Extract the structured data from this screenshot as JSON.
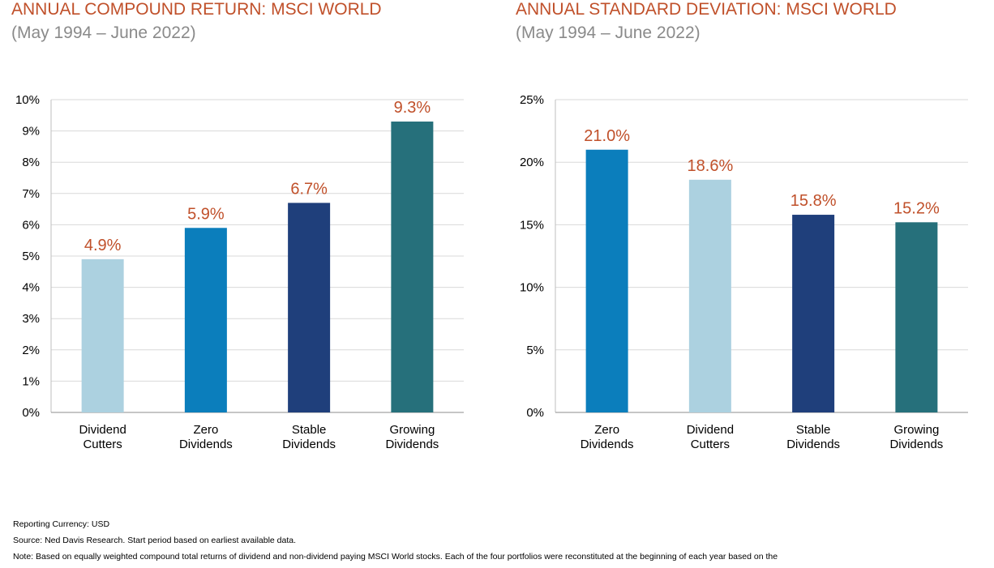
{
  "colors": {
    "title": "#c0502a",
    "subtitle": "#8a8a8a",
    "value_label": "#c0502a",
    "light_blue": "#acd1e0",
    "medium_blue": "#0b7ebc",
    "navy": "#1f3f7b",
    "teal": "#26707b"
  },
  "chart_data": [
    {
      "type": "bar",
      "title": "ANNUAL COMPOUND RETURN: MSCI WORLD",
      "subtitle": "(May 1994 – June 2022)",
      "categories": [
        [
          "Dividend",
          "Cutters"
        ],
        [
          "Zero",
          "Dividends"
        ],
        [
          "Stable",
          "Dividends"
        ],
        [
          "Growing",
          "Dividends"
        ]
      ],
      "values": [
        4.9,
        5.9,
        6.7,
        9.3
      ],
      "value_labels": [
        "4.9%",
        "5.9%",
        "6.7%",
        "9.3%"
      ],
      "bar_colors": [
        "#acd1e0",
        "#0b7ebc",
        "#1f3f7b",
        "#26707b"
      ],
      "ylim": [
        0,
        10
      ],
      "yticks": [
        0,
        1,
        2,
        3,
        4,
        5,
        6,
        7,
        8,
        9,
        10
      ],
      "ytick_labels": [
        "0%",
        "1%",
        "2%",
        "3%",
        "4%",
        "5%",
        "6%",
        "7%",
        "8%",
        "9%",
        "10%"
      ],
      "grid": true
    },
    {
      "type": "bar",
      "title": "ANNUAL STANDARD DEVIATION: MSCI WORLD",
      "subtitle": "(May 1994 – June 2022)",
      "categories": [
        [
          "Zero",
          "Dividends"
        ],
        [
          "Dividend",
          "Cutters"
        ],
        [
          "Stable",
          "Dividends"
        ],
        [
          "Growing",
          "Dividends"
        ]
      ],
      "values": [
        21.0,
        18.6,
        15.8,
        15.2
      ],
      "value_labels": [
        "21.0%",
        "18.6%",
        "15.8%",
        "15.2%"
      ],
      "bar_colors": [
        "#0b7ebc",
        "#acd1e0",
        "#1f3f7b",
        "#26707b"
      ],
      "ylim": [
        0,
        25
      ],
      "yticks": [
        0,
        5,
        10,
        15,
        20,
        25
      ],
      "ytick_labels": [
        "0%",
        "5%",
        "10%",
        "15%",
        "20%",
        "25%"
      ],
      "grid": true
    }
  ],
  "footnotes": {
    "currency": "Reporting Currency: USD",
    "source": "Source: Ned Davis Research. Start period based on earliest available data.",
    "note": "Note: Based on equally weighted compound total returns of dividend and non-dividend paying MSCI World stocks. Each of the four portfolios were reconstituted at the beginning of each year based on the"
  }
}
